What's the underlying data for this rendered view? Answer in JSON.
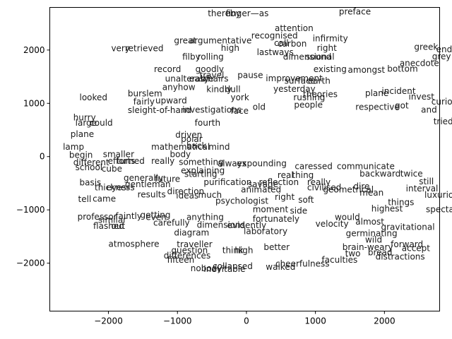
{
  "chart_data": {
    "type": "scatter",
    "title": "",
    "xlabel": "",
    "ylabel": "",
    "xlim": [
      -2850,
      2800
    ],
    "ylim": [
      -2900,
      2800
    ],
    "grid": false,
    "xticks": [
      -2000,
      -1000,
      0,
      1000,
      2000
    ],
    "yticks": [
      -2000,
      -1000,
      0,
      1000,
      2000
    ],
    "xtick_labels": [
      "−2000",
      "−1000",
      "0",
      "1000",
      "2000"
    ],
    "ytick_labels": [
      "−2000",
      "−1000",
      "0",
      "1000",
      "2000"
    ],
    "points": [
      {
        "label": "preface",
        "x": 1340,
        "y": 2720
      },
      {
        "label": "thereby",
        "x": -560,
        "y": 2690
      },
      {
        "label": "finger—as",
        "x": -300,
        "y": 2690
      },
      {
        "label": "attention",
        "x": 410,
        "y": 2410
      },
      {
        "label": "recognised",
        "x": 70,
        "y": 2270
      },
      {
        "label": "infirmity",
        "x": 960,
        "y": 2220
      },
      {
        "label": "argumentative",
        "x": -830,
        "y": 2180
      },
      {
        "label": "great",
        "x": -1050,
        "y": 2180
      },
      {
        "label": "call",
        "x": 400,
        "y": 2130
      },
      {
        "label": "carbon",
        "x": 450,
        "y": 2120
      },
      {
        "label": "right",
        "x": 1020,
        "y": 2040
      },
      {
        "label": "greek",
        "x": 2430,
        "y": 2060
      },
      {
        "label": "ends",
        "x": 2750,
        "y": 2010
      },
      {
        "label": "very",
        "x": -1960,
        "y": 2030
      },
      {
        "label": "retrieved",
        "x": -1760,
        "y": 2030
      },
      {
        "label": "high",
        "x": -370,
        "y": 2040
      },
      {
        "label": "lastways",
        "x": 150,
        "y": 1960
      },
      {
        "label": "filby",
        "x": -930,
        "y": 1870
      },
      {
        "label": "rolling",
        "x": -710,
        "y": 1870
      },
      {
        "label": "dimensional",
        "x": 530,
        "y": 1870
      },
      {
        "label": "sound",
        "x": 860,
        "y": 1870
      },
      {
        "label": "grey",
        "x": 2690,
        "y": 1880
      },
      {
        "label": "anecdote",
        "x": 2220,
        "y": 1750
      },
      {
        "label": "bottom",
        "x": 2040,
        "y": 1650
      },
      {
        "label": "record",
        "x": -1340,
        "y": 1640
      },
      {
        "label": "goodly",
        "x": -740,
        "y": 1640
      },
      {
        "label": "existing",
        "x": 970,
        "y": 1640
      },
      {
        "label": "amongst",
        "x": 1470,
        "y": 1630
      },
      {
        "label": "travel",
        "x": -680,
        "y": 1530
      },
      {
        "label": "pause",
        "x": -130,
        "y": 1530
      },
      {
        "label": "improvement",
        "x": 280,
        "y": 1470
      },
      {
        "label": "unalterable",
        "x": -1180,
        "y": 1460
      },
      {
        "label": "easy",
        "x": -830,
        "y": 1460
      },
      {
        "label": "chairs",
        "x": -630,
        "y": 1460
      },
      {
        "label": "surface",
        "x": 550,
        "y": 1420
      },
      {
        "label": "earth",
        "x": 890,
        "y": 1420
      },
      {
        "label": "anyhow",
        "x": -1220,
        "y": 1300
      },
      {
        "label": "kindly",
        "x": -580,
        "y": 1260
      },
      {
        "label": "dull",
        "x": -310,
        "y": 1260
      },
      {
        "label": "yesterday",
        "x": 390,
        "y": 1270
      },
      {
        "label": "theories",
        "x": 820,
        "y": 1170
      },
      {
        "label": "plane",
        "x": 1720,
        "y": 1190
      },
      {
        "label": "incident",
        "x": 1960,
        "y": 1230
      },
      {
        "label": "burslem",
        "x": -1720,
        "y": 1180
      },
      {
        "label": "looked",
        "x": -2420,
        "y": 1110
      },
      {
        "label": "invest",
        "x": 2350,
        "y": 1120
      },
      {
        "label": "york",
        "x": -230,
        "y": 1110
      },
      {
        "label": "rushing",
        "x": 680,
        "y": 1110
      },
      {
        "label": "upward",
        "x": -1320,
        "y": 1050
      },
      {
        "label": "fairly",
        "x": -1640,
        "y": 1030
      },
      {
        "label": "curious",
        "x": 2680,
        "y": 1030
      },
      {
        "label": "people",
        "x": 690,
        "y": 970
      },
      {
        "label": "got",
        "x": 2150,
        "y": 960
      },
      {
        "label": "old",
        "x": 90,
        "y": 930
      },
      {
        "label": "respective",
        "x": 1580,
        "y": 930
      },
      {
        "label": "and",
        "x": 2530,
        "y": 880
      },
      {
        "label": "sleight-of-hand",
        "x": -1720,
        "y": 870
      },
      {
        "label": "investigations",
        "x": -930,
        "y": 880
      },
      {
        "label": "face",
        "x": -230,
        "y": 860
      },
      {
        "label": "hurry",
        "x": -2510,
        "y": 730
      },
      {
        "label": "fourth",
        "x": -750,
        "y": 630
      },
      {
        "label": "large",
        "x": -2480,
        "y": 630
      },
      {
        "label": "could",
        "x": -2270,
        "y": 630
      },
      {
        "label": "tried",
        "x": 2710,
        "y": 660
      },
      {
        "label": "lamp",
        "x": -2660,
        "y": 180
      },
      {
        "label": "plane",
        "x": -2550,
        "y": 420
      },
      {
        "label": "driven",
        "x": -1030,
        "y": 410
      },
      {
        "label": "polar",
        "x": -950,
        "y": 330
      },
      {
        "label": "back",
        "x": -870,
        "y": 200
      },
      {
        "label": "mathematical",
        "x": -1380,
        "y": 180
      },
      {
        "label": "mind",
        "x": -550,
        "y": 180
      },
      {
        "label": "begin",
        "x": -2570,
        "y": 30
      },
      {
        "label": "smaller",
        "x": -2080,
        "y": 40
      },
      {
        "label": "body",
        "x": -1110,
        "y": 40
      },
      {
        "label": "efforts",
        "x": -2010,
        "y": -80
      },
      {
        "label": "turned",
        "x": -1880,
        "y": -80
      },
      {
        "label": "really",
        "x": -1380,
        "y": -80
      },
      {
        "label": "something",
        "x": -980,
        "y": -100
      },
      {
        "label": "always",
        "x": -420,
        "y": -130
      },
      {
        "label": "expounding",
        "x": -140,
        "y": -130
      },
      {
        "label": "different",
        "x": -2510,
        "y": -110
      },
      {
        "label": "school",
        "x": -2480,
        "y": -200
      },
      {
        "label": "cube",
        "x": -2100,
        "y": -230
      },
      {
        "label": "explaining",
        "x": -950,
        "y": -260
      },
      {
        "label": "caressed",
        "x": 700,
        "y": -180
      },
      {
        "label": "communicate",
        "x": 1310,
        "y": -180
      },
      {
        "label": "generally",
        "x": -1780,
        "y": -400
      },
      {
        "label": "future",
        "x": -1330,
        "y": -420
      },
      {
        "label": "starting",
        "x": -900,
        "y": -330
      },
      {
        "label": "real",
        "x": 450,
        "y": -350
      },
      {
        "label": "thing",
        "x": 660,
        "y": -350
      },
      {
        "label": "backward",
        "x": 1640,
        "y": -320
      },
      {
        "label": "twice",
        "x": 2230,
        "y": -320
      },
      {
        "label": "basis",
        "x": -2420,
        "y": -490
      },
      {
        "label": "thickness",
        "x": -2200,
        "y": -580
      },
      {
        "label": "eyes",
        "x": -2030,
        "y": -580
      },
      {
        "label": "gentleman",
        "x": -1760,
        "y": -520
      },
      {
        "label": "purification",
        "x": -620,
        "y": -480
      },
      {
        "label": "savage",
        "x": 20,
        "y": -520
      },
      {
        "label": "reflection",
        "x": 180,
        "y": -480
      },
      {
        "label": "civilised",
        "x": 880,
        "y": -580
      },
      {
        "label": "really",
        "x": 880,
        "y": -480
      },
      {
        "label": "geometrical",
        "x": 1110,
        "y": -620
      },
      {
        "label": "mean",
        "x": 1640,
        "y": -680
      },
      {
        "label": "dire",
        "x": 1550,
        "y": -560
      },
      {
        "label": "still",
        "x": 2500,
        "y": -470
      },
      {
        "label": "interval",
        "x": 2310,
        "y": -600
      },
      {
        "label": "luxurious",
        "x": 2580,
        "y": -720
      },
      {
        "label": "direction",
        "x": -1150,
        "y": -650
      },
      {
        "label": "ideas",
        "x": -1020,
        "y": -730
      },
      {
        "label": "results",
        "x": -1580,
        "y": -710
      },
      {
        "label": "much",
        "x": -700,
        "y": -720
      },
      {
        "label": "psychologist",
        "x": -450,
        "y": -830
      },
      {
        "label": "animated",
        "x": -80,
        "y": -620
      },
      {
        "label": "right",
        "x": 410,
        "y": -760
      },
      {
        "label": "soft",
        "x": 750,
        "y": -810
      },
      {
        "label": "tell",
        "x": -2440,
        "y": -800
      },
      {
        "label": "came",
        "x": -2230,
        "y": -790
      },
      {
        "label": "things",
        "x": 2050,
        "y": -860
      },
      {
        "label": "moment",
        "x": 90,
        "y": -990
      },
      {
        "label": "side",
        "x": 630,
        "y": -1020
      },
      {
        "label": "highest",
        "x": 1810,
        "y": -980
      },
      {
        "label": "spectacular",
        "x": 2600,
        "y": -990
      },
      {
        "label": "professor",
        "x": -2450,
        "y": -1130
      },
      {
        "label": "faintly",
        "x": -1900,
        "y": -1120
      },
      {
        "label": "getting",
        "x": -1540,
        "y": -1100
      },
      {
        "label": "even",
        "x": -1460,
        "y": -1140
      },
      {
        "label": "carefully",
        "x": -1350,
        "y": -1240
      },
      {
        "label": "anything",
        "x": -870,
        "y": -1140
      },
      {
        "label": "similar",
        "x": -2150,
        "y": -1190
      },
      {
        "label": "flashed",
        "x": -2220,
        "y": -1300
      },
      {
        "label": "out",
        "x": -1960,
        "y": -1300
      },
      {
        "label": "fortunately",
        "x": 90,
        "y": -1170
      },
      {
        "label": "would",
        "x": 1280,
        "y": -1140
      },
      {
        "label": "almost",
        "x": 1580,
        "y": -1220
      },
      {
        "label": "velocity",
        "x": 1000,
        "y": -1260
      },
      {
        "label": "evidently",
        "x": -280,
        "y": -1290
      },
      {
        "label": "dimensions",
        "x": -720,
        "y": -1280
      },
      {
        "label": "gravitational",
        "x": 1950,
        "y": -1320
      },
      {
        "label": "diagram",
        "x": -1050,
        "y": -1430
      },
      {
        "label": "laboratory",
        "x": -40,
        "y": -1400
      },
      {
        "label": "germinating",
        "x": 1440,
        "y": -1440
      },
      {
        "label": "wild",
        "x": 1720,
        "y": -1560
      },
      {
        "label": "atmosphere",
        "x": -2000,
        "y": -1640
      },
      {
        "label": "traveller",
        "x": -1010,
        "y": -1650
      },
      {
        "label": "forward",
        "x": 2090,
        "y": -1650
      },
      {
        "label": "accept",
        "x": 2250,
        "y": -1720
      },
      {
        "label": "better",
        "x": 250,
        "y": -1700
      },
      {
        "label": "brain-weary",
        "x": 1390,
        "y": -1700
      },
      {
        "label": "think",
        "x": -350,
        "y": -1760
      },
      {
        "label": "high",
        "x": -170,
        "y": -1760
      },
      {
        "label": "two",
        "x": 1430,
        "y": -1820
      },
      {
        "label": "bread",
        "x": 1760,
        "y": -1800
      },
      {
        "label": "differences",
        "x": -1200,
        "y": -1860
      },
      {
        "label": "fifteen",
        "x": -1150,
        "y": -1940
      },
      {
        "label": "distractions",
        "x": 1870,
        "y": -1880
      },
      {
        "label": "cheerfulness",
        "x": 420,
        "y": -2010
      },
      {
        "label": "walked",
        "x": 280,
        "y": -2070
      },
      {
        "label": "collapsed",
        "x": -490,
        "y": -2060
      },
      {
        "label": "nobody",
        "x": -810,
        "y": -2100
      },
      {
        "label": "inevitable",
        "x": -620,
        "y": -2110
      },
      {
        "label": "faculties",
        "x": 1090,
        "y": -1940
      },
      {
        "label": "question",
        "x": -1090,
        "y": -1760
      }
    ]
  }
}
